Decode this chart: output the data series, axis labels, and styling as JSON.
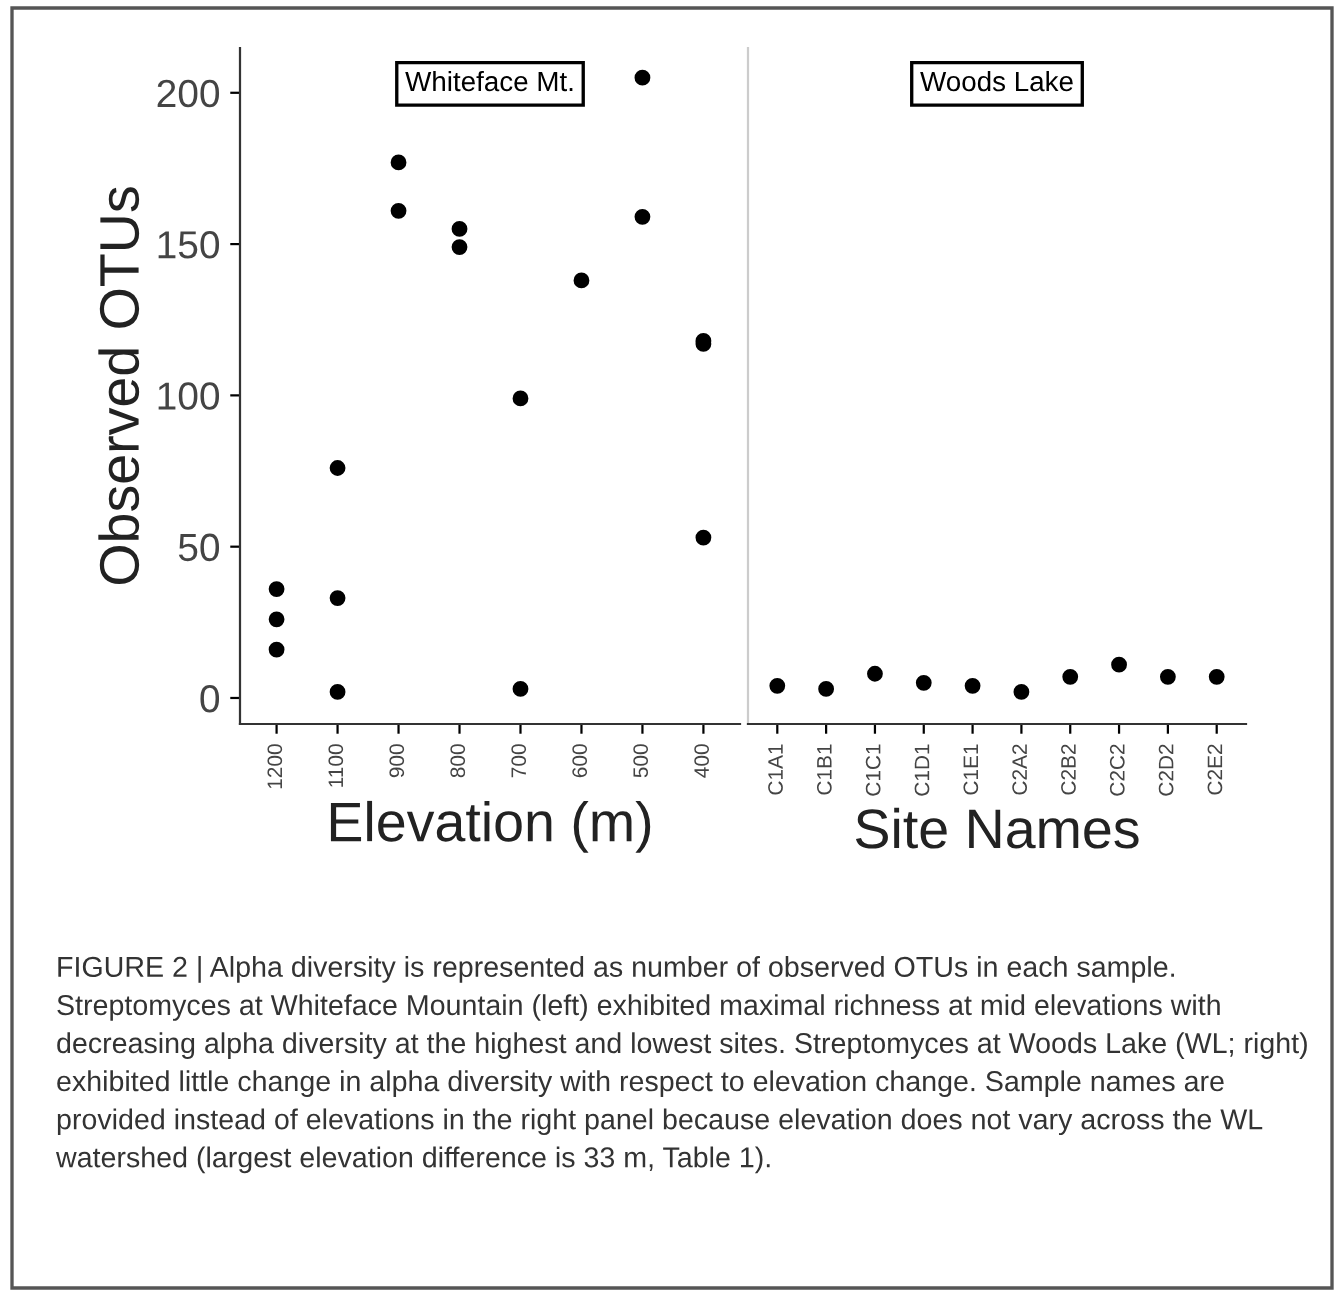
{
  "chart_data": [
    {
      "type": "scatter",
      "title": "Whiteface Mt.",
      "xlabel": "Elevation (m)",
      "ylabel": "Observed OTUs",
      "categories": [
        "1200",
        "1100",
        "900",
        "800",
        "700",
        "600",
        "500",
        "400"
      ],
      "series": [
        {
          "color": "#000000",
          "values": [
            36,
            76,
            177,
            155,
            99,
            138,
            205,
            118
          ]
        },
        {
          "color": "#000000",
          "values": [
            26,
            33,
            161,
            149,
            3,
            null,
            159,
            117
          ]
        },
        {
          "color": "#000000",
          "values": [
            16,
            2,
            null,
            null,
            null,
            null,
            null,
            53
          ]
        }
      ],
      "ylim": [
        -8.6,
        214.8
      ],
      "yticks": [
        0,
        50,
        100,
        150,
        200
      ],
      "marker": "circle",
      "grid": false,
      "legend": false,
      "annotations": [
        "FIGURE 2 | Alpha diversity is represented as number of observed OTUs in each sample. Streptomyces at Whiteface Mountain (left) exhibited maximal richness at mid elevations with decreasing alpha diversity at the highest and lowest sites. Streptomyces at Woods Lake (WL; right) exhibited little change in alpha diversity with respect to elevation change. Sample names are provided instead of elevations in the right panel because elevation does not vary across the WL watershed (largest elevation difference is 33 m, Table 1)."
      ]
    },
    {
      "type": "scatter",
      "title": "Woods Lake",
      "xlabel": "Site Names",
      "categories": [
        "C1A1",
        "C1B1",
        "C1C1",
        "C1D1",
        "C1E1",
        "C2A2",
        "C2B2",
        "C2C2",
        "C2D2",
        "C2E2"
      ],
      "series": [
        {
          "color": "#000000",
          "values": [
            4,
            3,
            8,
            5,
            4,
            2,
            7,
            11,
            7,
            7
          ]
        }
      ],
      "ylim": [
        -8.6,
        214.8
      ],
      "yticks": [
        0,
        50,
        100,
        150,
        200
      ],
      "marker": "circle",
      "grid": false,
      "legend": false,
      "tick_labels": "x"
    }
  ]
}
